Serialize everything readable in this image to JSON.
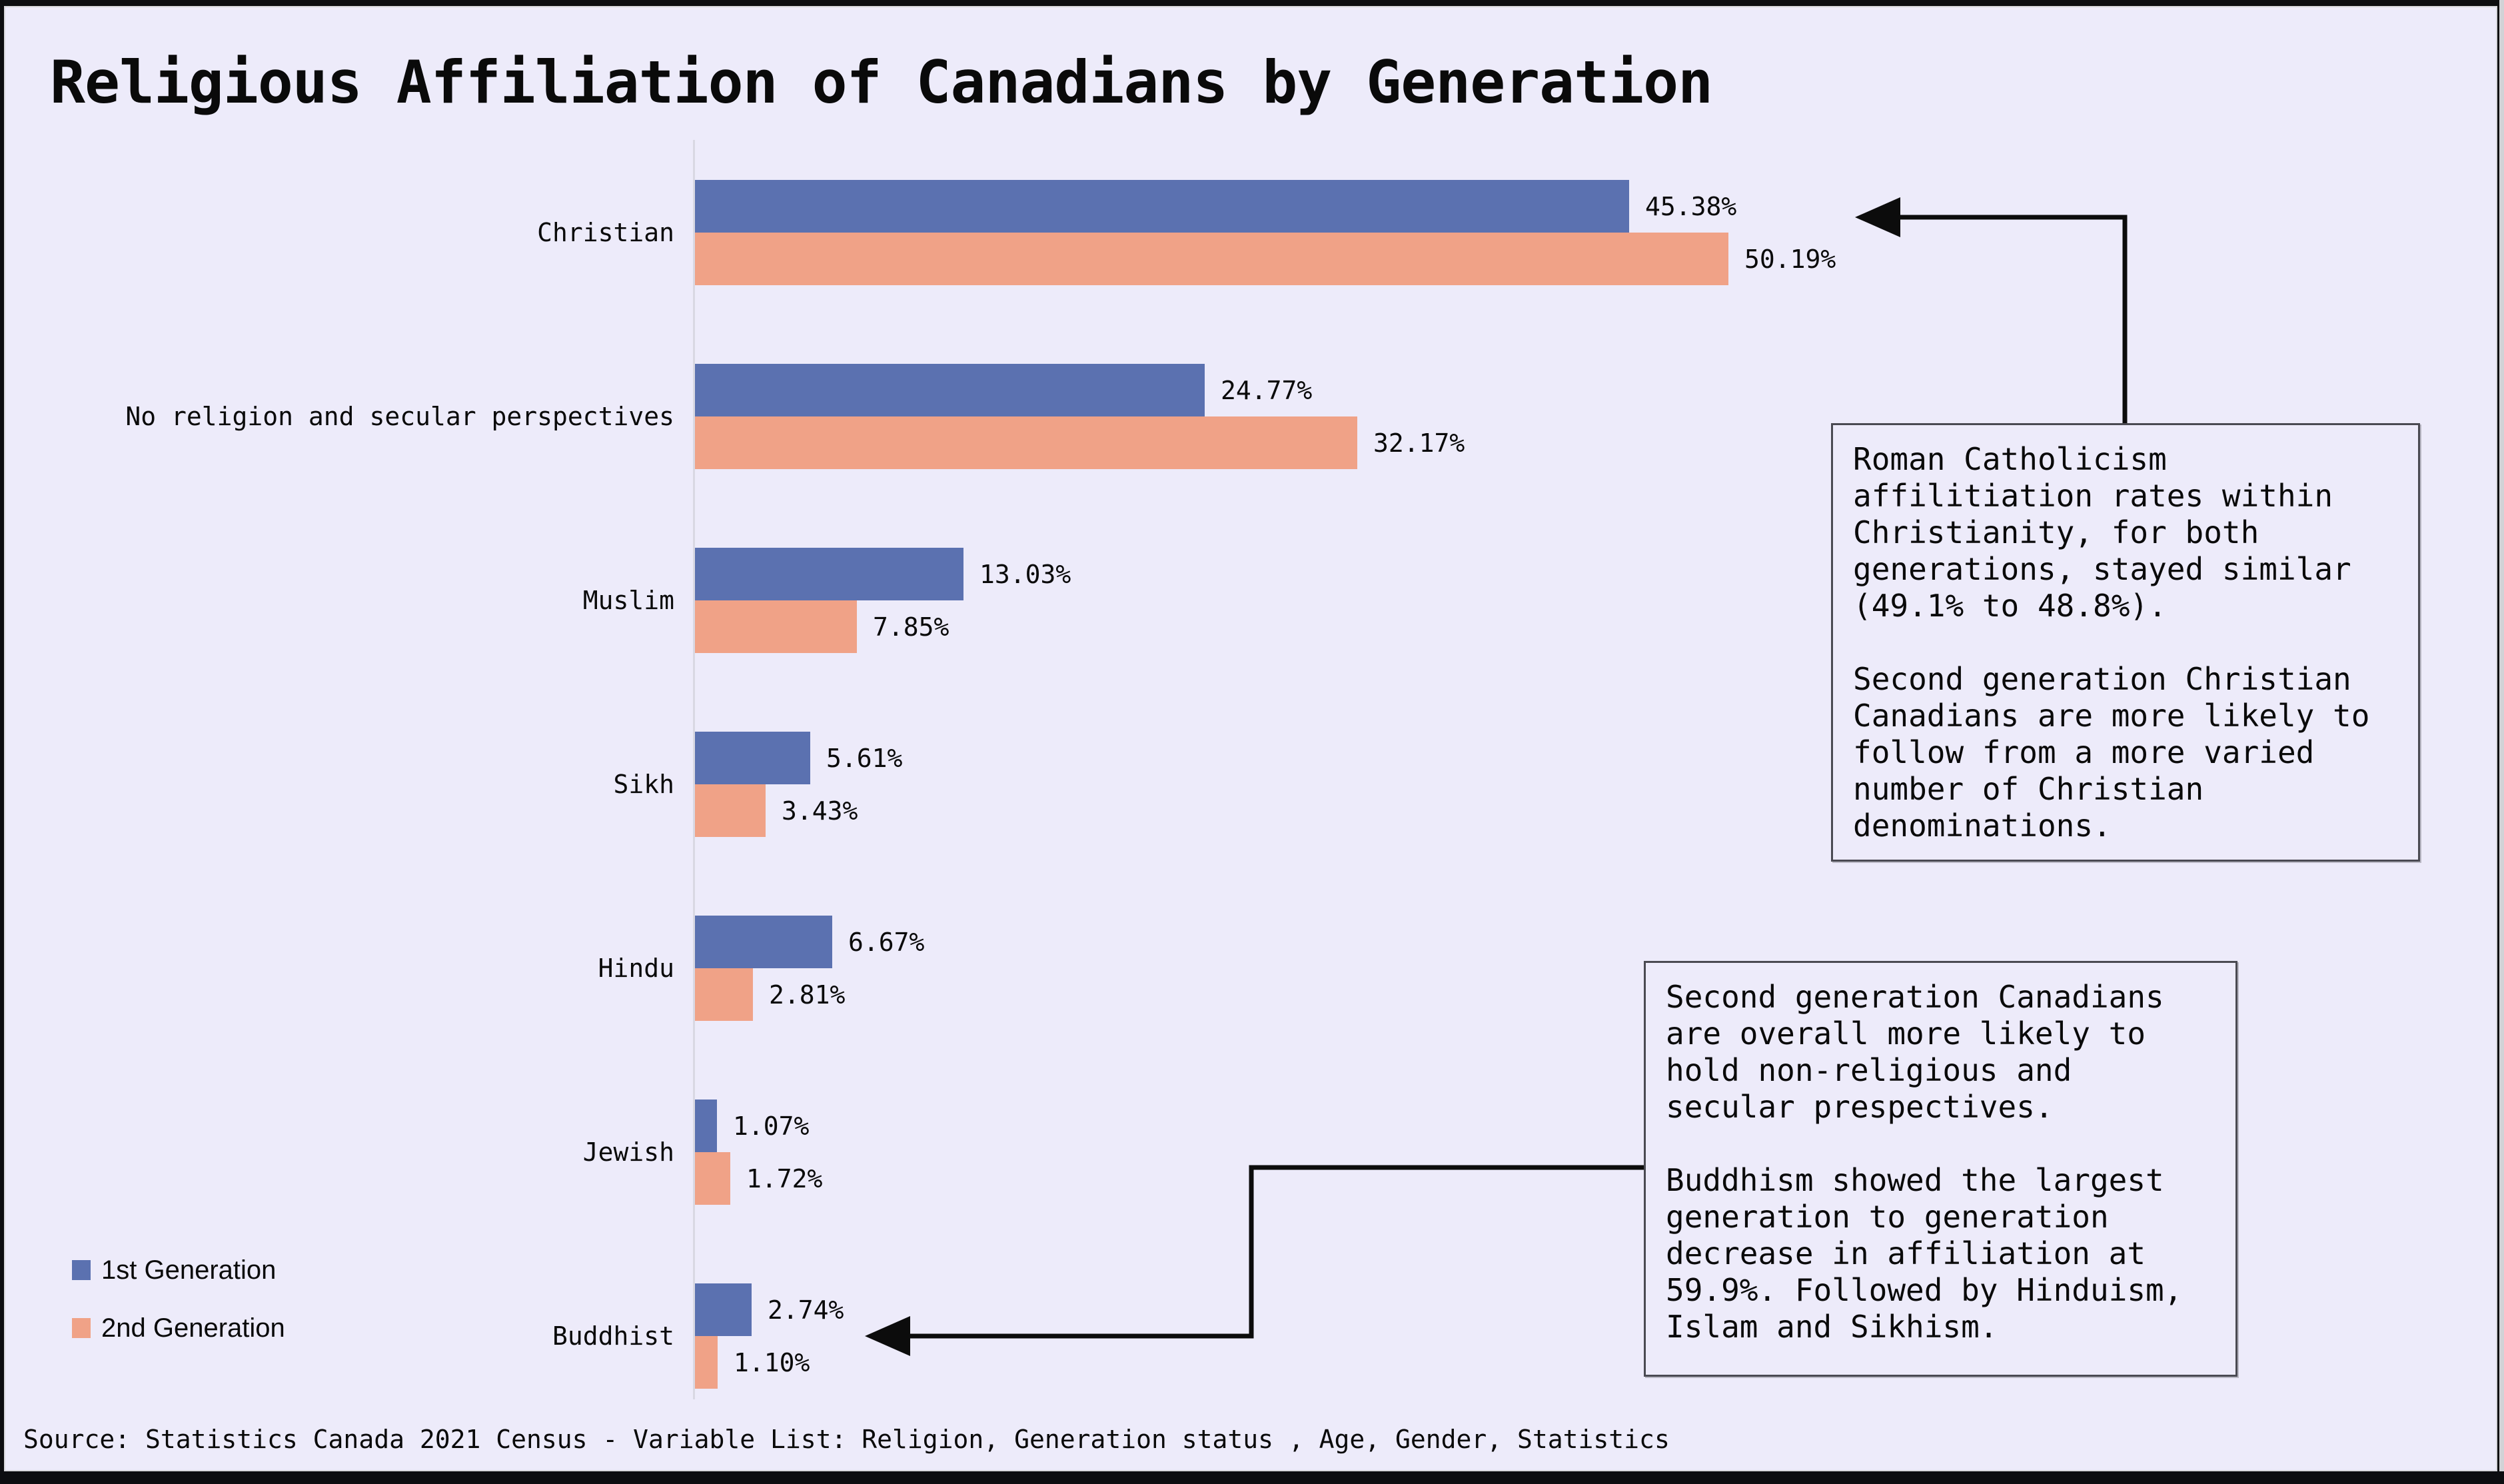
{
  "title": "Religious Affiliation of Canadians by Generation",
  "source": "Source: Statistics Canada 2021 Census - Variable List: Religion, Generation status , Age, Gender, Statistics",
  "legend": [
    {
      "label": "1st Generation",
      "color": "#5b71b0"
    },
    {
      "label": "2nd Generation",
      "color": "#f0a287"
    }
  ],
  "annotations": [
    {
      "name": "roman-catholicism-note",
      "text": "Roman Catholicism\naffilitiation rates within\nChristianity, for both\ngenerations, stayed similar\n(49.1% to 48.8%).\n\nSecond generation Christian\nCanadians are more likely to\nfollow from a more varied\nnumber of Christian\ndenominations."
    },
    {
      "name": "second-generation-note",
      "text": "Second generation Canadians\nare overall more likely to\nhold non-religious and\nsecular prespectives.\n\nBuddhism showed the largest\ngeneration to generation\ndecrease in affiliation at\n59.9%. Followed by Hinduism,\nIslam and Sikhism."
    }
  ],
  "chart_data": {
    "type": "bar",
    "orientation": "horizontal",
    "title": "Religious Affiliation of Canadians by Generation",
    "categories": [
      "Christian",
      "No religion and secular perspectives",
      "Muslim",
      "Sikh",
      "Hindu",
      "Jewish",
      "Buddhist"
    ],
    "series": [
      {
        "name": "1st Generation",
        "color": "#5b71b0",
        "values": [
          45.38,
          24.77,
          13.03,
          5.61,
          6.67,
          1.07,
          2.74
        ]
      },
      {
        "name": "2nd Generation",
        "color": "#f0a287",
        "values": [
          50.19,
          32.17,
          7.85,
          3.43,
          2.81,
          1.72,
          1.1
        ]
      }
    ],
    "value_suffix": "%",
    "value_decimals": 2,
    "xlim": [
      0,
      52
    ],
    "grid": false,
    "legend_position": "lower left"
  },
  "colors": {
    "background": "#edebfa",
    "axis_line": "#d9d8e3",
    "annotation_border": "#4a4a52",
    "arrow": "#0c0c0c",
    "text": "#0a0a0a"
  }
}
